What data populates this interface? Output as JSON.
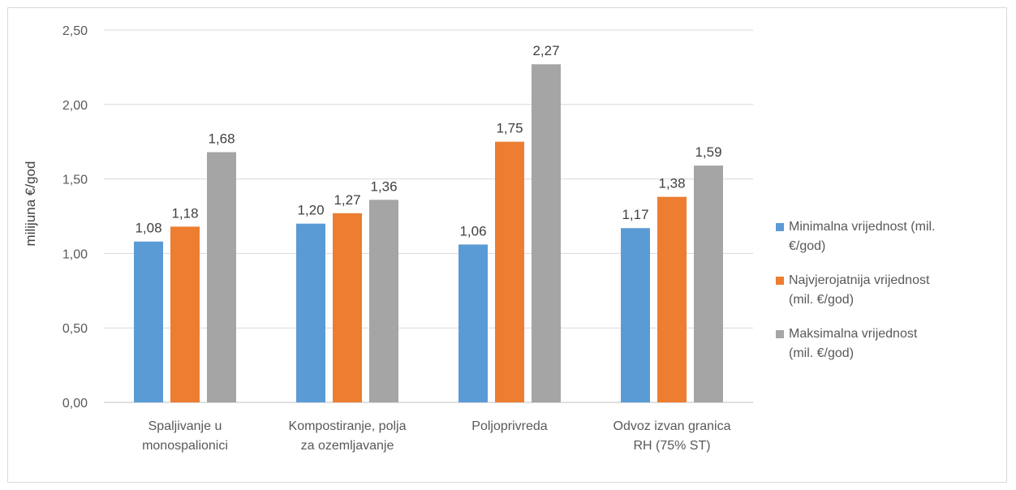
{
  "chart_data": {
    "type": "bar",
    "ylabel": "milijuna €/god",
    "ylim": [
      0,
      2.5
    ],
    "ytick_step": 0.5,
    "ytick_labels": [
      "0,00",
      "0,50",
      "1,00",
      "1,50",
      "2,00",
      "2,50"
    ],
    "grid": true,
    "legend_position": "right",
    "categories": [
      "Spaljivanje u\nmonospalionici",
      "Kompostiranje, polja\nza ozemljavanje",
      "Poljoprivreda",
      "Odvoz izvan granica\nRH (75% ST)"
    ],
    "series": [
      {
        "name": "Minimalna vrijednost      (mil.\n€/god)",
        "color": "#5b9bd5",
        "values": [
          1.08,
          1.2,
          1.06,
          1.17
        ],
        "labels": [
          "1,08",
          "1,20",
          "1,06",
          "1,17"
        ]
      },
      {
        "name": "Najvjerojatnija vrijednost\n(mil. €/god)",
        "color": "#ed7d31",
        "values": [
          1.18,
          1.27,
          1.75,
          1.38
        ],
        "labels": [
          "1,18",
          "1,27",
          "1,75",
          "1,38"
        ]
      },
      {
        "name": "Maksimalna vrijednost\n(mil. €/god)",
        "color": "#a5a5a5",
        "values": [
          1.68,
          1.36,
          2.27,
          1.59
        ],
        "labels": [
          "1,68",
          "1,36",
          "2,27",
          "1,59"
        ]
      }
    ]
  }
}
